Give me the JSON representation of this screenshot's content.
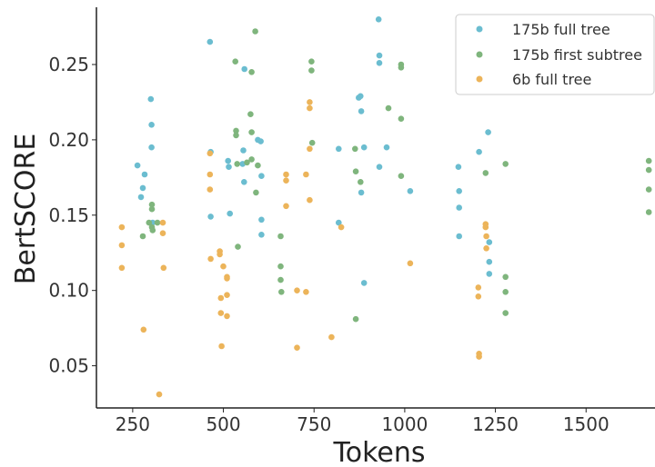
{
  "chart_data": {
    "type": "scatter",
    "title": "",
    "xlabel": "Tokens",
    "ylabel": "BertSCORE",
    "xlim": [
      150,
      1690
    ],
    "ylim": [
      0.022,
      0.288
    ],
    "xticks": [
      250,
      500,
      750,
      1000,
      1250,
      1500
    ],
    "yticks": [
      0.05,
      0.1,
      0.15,
      0.2,
      0.25
    ],
    "grid": false,
    "legend_position": "top-right",
    "series": [
      {
        "name": "175b full tree",
        "color": "#6bbdd0",
        "points": [
          [
            263,
            0.183
          ],
          [
            273,
            0.162
          ],
          [
            278,
            0.168
          ],
          [
            283,
            0.177
          ],
          [
            300,
            0.227
          ],
          [
            302,
            0.21
          ],
          [
            302,
            0.195
          ],
          [
            305,
            0.145
          ],
          [
            463,
            0.265
          ],
          [
            465,
            0.192
          ],
          [
            465,
            0.149
          ],
          [
            513,
            0.186
          ],
          [
            515,
            0.182
          ],
          [
            518,
            0.151
          ],
          [
            553,
            0.184
          ],
          [
            555,
            0.193
          ],
          [
            557,
            0.172
          ],
          [
            558,
            0.247
          ],
          [
            595,
            0.2
          ],
          [
            603,
            0.199
          ],
          [
            605,
            0.176
          ],
          [
            605,
            0.147
          ],
          [
            605,
            0.137
          ],
          [
            818,
            0.194
          ],
          [
            818,
            0.145
          ],
          [
            873,
            0.228
          ],
          [
            878,
            0.229
          ],
          [
            880,
            0.219
          ],
          [
            880,
            0.165
          ],
          [
            888,
            0.195
          ],
          [
            888,
            0.105
          ],
          [
            928,
            0.28
          ],
          [
            930,
            0.256
          ],
          [
            930,
            0.251
          ],
          [
            930,
            0.182
          ],
          [
            950,
            0.195
          ],
          [
            1015,
            0.166
          ],
          [
            1148,
            0.182
          ],
          [
            1150,
            0.166
          ],
          [
            1150,
            0.155
          ],
          [
            1150,
            0.136
          ],
          [
            1205,
            0.192
          ],
          [
            1230,
            0.205
          ],
          [
            1233,
            0.132
          ],
          [
            1233,
            0.119
          ],
          [
            1233,
            0.111
          ]
        ]
      },
      {
        "name": "175b first subtree",
        "color": "#7fb57d",
        "points": [
          [
            278,
            0.136
          ],
          [
            295,
            0.145
          ],
          [
            303,
            0.157
          ],
          [
            303,
            0.154
          ],
          [
            303,
            0.142
          ],
          [
            305,
            0.14
          ],
          [
            318,
            0.145
          ],
          [
            533,
            0.252
          ],
          [
            535,
            0.206
          ],
          [
            535,
            0.203
          ],
          [
            538,
            0.184
          ],
          [
            540,
            0.129
          ],
          [
            565,
            0.185
          ],
          [
            575,
            0.217
          ],
          [
            578,
            0.245
          ],
          [
            578,
            0.205
          ],
          [
            578,
            0.187
          ],
          [
            588,
            0.272
          ],
          [
            590,
            0.165
          ],
          [
            595,
            0.183
          ],
          [
            658,
            0.136
          ],
          [
            658,
            0.116
          ],
          [
            658,
            0.107
          ],
          [
            660,
            0.099
          ],
          [
            743,
            0.252
          ],
          [
            743,
            0.246
          ],
          [
            745,
            0.198
          ],
          [
            863,
            0.194
          ],
          [
            865,
            0.179
          ],
          [
            865,
            0.081
          ],
          [
            878,
            0.172
          ],
          [
            955,
            0.221
          ],
          [
            990,
            0.25
          ],
          [
            990,
            0.248
          ],
          [
            990,
            0.214
          ],
          [
            990,
            0.176
          ],
          [
            1223,
            0.178
          ],
          [
            1278,
            0.184
          ],
          [
            1278,
            0.109
          ],
          [
            1278,
            0.099
          ],
          [
            1278,
            0.085
          ],
          [
            1673,
            0.186
          ],
          [
            1673,
            0.18
          ],
          [
            1673,
            0.167
          ],
          [
            1673,
            0.152
          ]
        ]
      },
      {
        "name": "6b full tree",
        "color": "#ecb45a",
        "points": [
          [
            220,
            0.142
          ],
          [
            220,
            0.13
          ],
          [
            220,
            0.115
          ],
          [
            280,
            0.074
          ],
          [
            323,
            0.031
          ],
          [
            333,
            0.145
          ],
          [
            333,
            0.138
          ],
          [
            335,
            0.115
          ],
          [
            463,
            0.191
          ],
          [
            463,
            0.177
          ],
          [
            463,
            0.167
          ],
          [
            465,
            0.121
          ],
          [
            490,
            0.126
          ],
          [
            490,
            0.124
          ],
          [
            493,
            0.095
          ],
          [
            493,
            0.085
          ],
          [
            495,
            0.063
          ],
          [
            500,
            0.116
          ],
          [
            510,
            0.109
          ],
          [
            510,
            0.108
          ],
          [
            510,
            0.097
          ],
          [
            510,
            0.083
          ],
          [
            673,
            0.177
          ],
          [
            673,
            0.173
          ],
          [
            673,
            0.156
          ],
          [
            703,
            0.1
          ],
          [
            703,
            0.062
          ],
          [
            728,
            0.099
          ],
          [
            728,
            0.177
          ],
          [
            738,
            0.225
          ],
          [
            738,
            0.221
          ],
          [
            738,
            0.194
          ],
          [
            738,
            0.16
          ],
          [
            798,
            0.069
          ],
          [
            825,
            0.142
          ],
          [
            1015,
            0.118
          ],
          [
            1203,
            0.102
          ],
          [
            1203,
            0.096
          ],
          [
            1205,
            0.058
          ],
          [
            1205,
            0.056
          ],
          [
            1223,
            0.144
          ],
          [
            1223,
            0.142
          ],
          [
            1225,
            0.136
          ],
          [
            1225,
            0.128
          ]
        ]
      }
    ]
  }
}
